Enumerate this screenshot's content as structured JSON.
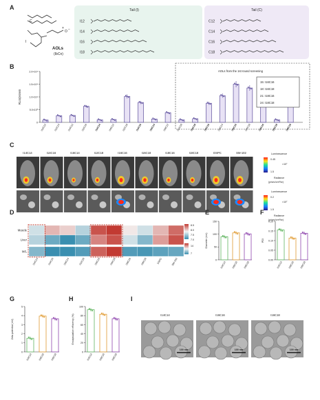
{
  "panels": [
    "A",
    "B",
    "C",
    "D",
    "E",
    "F",
    "G",
    "H",
    "I"
  ],
  "panel_a": {
    "molecule_labels": {
      "aols": "AOLs",
      "ibcn": "(IbCn)",
      "i": "I",
      "c": "C",
      "n_plus": "+",
      "o_minus": "O",
      "minus": "−"
    },
    "tail_i_title": "Tail (I)",
    "tail_c_title": "Tail (C)",
    "tails_i": [
      "I12",
      "I14",
      "I16",
      "I18"
    ],
    "tails_c": [
      "C12",
      "C14",
      "C16",
      "C18"
    ],
    "colors": {
      "tail_i_bg": "#e8f4ee",
      "tail_c_bg": "#efe9f6",
      "i_mark": "#6fb98f",
      "c_mark": "#b39bd0"
    }
  },
  "chart_data": [
    {
      "panel": "B",
      "type": "bar",
      "ylabel": "RLU/protein",
      "ylim": [
        0,
        20000
      ],
      "yticks": [
        "0",
        "5.0×10³",
        "1.0×10⁴",
        "1.5×10⁴",
        "2.0×10⁴"
      ],
      "categories": [
        "I12C12",
        "I12C14",
        "I14C12",
        "I12C16",
        "I14C14",
        "I16C12",
        "I12C18",
        "I14C16",
        "I16C14",
        "I18C12",
        "I12C18",
        "I14C18",
        "I16C16",
        "I18C14",
        "I16C16",
        "I16C18",
        "I18C16",
        "I16C18",
        "I18C18"
      ],
      "bold_categories": [
        4,
        7,
        8,
        11,
        12,
        14,
        16,
        17,
        18
      ],
      "values": [
        900,
        2600,
        2700,
        6300,
        1000,
        1100,
        10200,
        7800,
        1300,
        3800,
        1000,
        1400,
        7500,
        10500,
        15000,
        13500,
        15200,
        1000,
        13800
      ],
      "bar_color": "#e8e2f5",
      "edge_color": "#5b4d9b",
      "box_title": "AOLs from the 1st round screening",
      "box_items": [
        "15: I16C16",
        "18: I16C18",
        "21: I18C16",
        "24: I18C18"
      ]
    },
    {
      "panel": "D",
      "type": "heatmap",
      "rows": [
        "Muscle",
        "Liver",
        "M/L"
      ],
      "columns": [
        "I14C14",
        "I14C16",
        "I16C14",
        "I12C18",
        "I16C16",
        "I16C18",
        "I18C16",
        "I18C18",
        "DSPC",
        "SM-102"
      ],
      "values_top": [
        [
          7.6,
          8.0,
          7.9,
          7.5,
          8.4,
          8.5,
          7.8,
          7.6,
          8.0,
          8.3
        ],
        [
          7.5,
          7.2,
          7.0,
          7.2,
          8.2,
          8.4,
          7.6,
          7.3,
          8.1,
          8.4
        ]
      ],
      "values_ml": [
        8,
        6.5,
        6.2,
        7.0,
        13.2,
        14.0,
        7.0,
        6.8,
        7.2,
        7.4
      ],
      "scale_top": [
        "8.5",
        "8.0",
        "7.5",
        "7.0"
      ],
      "scale_ml": [
        "14",
        "7"
      ]
    },
    {
      "panel": "E",
      "type": "bar",
      "ylabel": "Diameter (nm)",
      "ylim": [
        0,
        150
      ],
      "yticks": [
        "0",
        "50",
        "100",
        "150"
      ],
      "categories": [
        "I14C14",
        "I16C16",
        "I16C18"
      ],
      "values": [
        90,
        105,
        101
      ],
      "colors": [
        "#5fb45f",
        "#e0992f",
        "#8e44ad"
      ]
    },
    {
      "panel": "F",
      "type": "bar",
      "ylabel": "PDI",
      "ylim": [
        0,
        0.2
      ],
      "yticks": [
        "0.00",
        "0.05",
        "0.10",
        "0.15",
        "0.20"
      ],
      "categories": [
        "I14C14",
        "I16C16",
        "I16C18"
      ],
      "values": [
        0.155,
        0.113,
        0.138
      ],
      "colors": [
        "#5fb45f",
        "#e0992f",
        "#8e44ad"
      ]
    },
    {
      "panel": "G",
      "type": "bar",
      "ylabel": "Zeta potential (mV)",
      "ylim": [
        0,
        5
      ],
      "yticks": [
        "0",
        "1",
        "2",
        "3",
        "4",
        "5"
      ],
      "categories": [
        "I14C14",
        "I16C16",
        "I16C18"
      ],
      "values": [
        1.5,
        3.95,
        3.65
      ],
      "colors": [
        "#5fb45f",
        "#e0992f",
        "#8e44ad"
      ]
    },
    {
      "panel": "H",
      "type": "bar",
      "ylabel": "Encapsulation efficiency (%)",
      "ylim": [
        0,
        100
      ],
      "yticks": [
        "0",
        "20",
        "40",
        "60",
        "80",
        "100"
      ],
      "categories": [
        "I14C14",
        "I16C16",
        "I16C18"
      ],
      "values": [
        93,
        83,
        73
      ],
      "colors": [
        "#5fb45f",
        "#e0992f",
        "#8e44ad"
      ]
    }
  ],
  "panel_c": {
    "groups": [
      "I14C14",
      "I14C16",
      "I16C14",
      "I12C18",
      "I16C16",
      "I16C18",
      "I18C16",
      "I18C18",
      "DSPC",
      "SM-102"
    ],
    "scale_top": {
      "title": "Luminescence",
      "max": "0.45",
      "min": "1.5",
      "unit": "×10⁷",
      "radiance": "Radiance",
      "radiance_unit": "(p/sec/cm²/sr)"
    },
    "scale_bottom": {
      "title": "Luminescence",
      "max": "0.2",
      "min": "1.5",
      "unit": "×10⁷",
      "radiance": "Radiance",
      "radiance_unit": "(p/sec/cm²/sr)"
    }
  },
  "panel_i": {
    "groups": [
      "I14C14",
      "I16C16",
      "I16C18"
    ],
    "scale_bar": "100 nm"
  }
}
